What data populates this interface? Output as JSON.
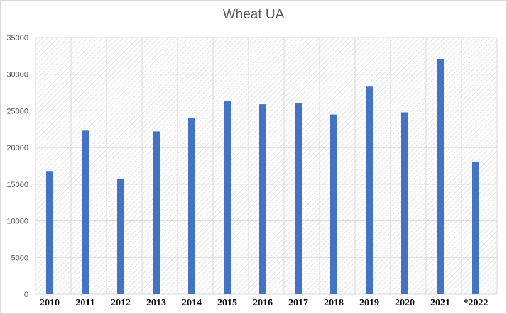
{
  "chart_data": {
    "type": "bar",
    "title": "Wheat UA",
    "categories": [
      "2010",
      "2011",
      "2012",
      "2013",
      "2014",
      "2015",
      "2016",
      "2017",
      "2018",
      "2019",
      "2020",
      "2021",
      "*2022"
    ],
    "series": [
      {
        "values": [
          16800,
          22300,
          15700,
          22200,
          24000,
          26400,
          25900,
          26100,
          24500,
          28300,
          24800,
          32100,
          18000
        ],
        "color": "#4472c4"
      }
    ],
    "ylim": [
      0,
      35000
    ],
    "yticks": [
      0,
      5000,
      10000,
      15000,
      20000,
      25000,
      30000,
      35000
    ],
    "grid": true,
    "legend": "none"
  }
}
